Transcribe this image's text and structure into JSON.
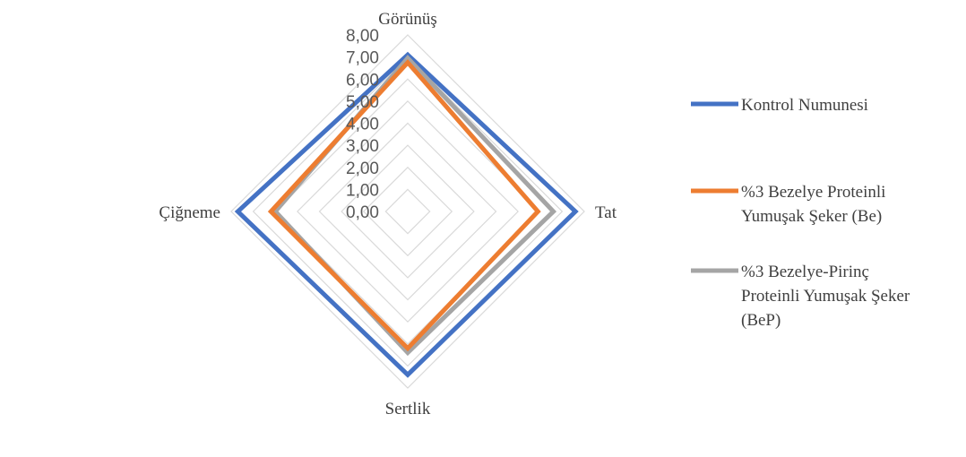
{
  "chart_data": {
    "type": "radar",
    "axes": [
      "Görünüş",
      "Tat",
      "Sertlik",
      "Çiğneme"
    ],
    "ticks": [
      "0,00",
      "1,00",
      "2,00",
      "3,00",
      "4,00",
      "5,00",
      "6,00",
      "7,00",
      "8,00"
    ],
    "rmin": 0,
    "rmax": 8,
    "grid": true,
    "legend_position": "right",
    "series": [
      {
        "name": "Kontrol Numunesi",
        "color": "#4472C4",
        "values": [
          7.1,
          7.6,
          7.4,
          7.7
        ]
      },
      {
        "name": "%3 Bezelye Proteinli Yumuşak Şeker (Be)",
        "color": "#ED7D31",
        "values": [
          6.75,
          5.9,
          6.2,
          6.2
        ]
      },
      {
        "name": "%3 Bezelye-Pirinç Proteinli Yumuşak Şeker (BeP)",
        "color": "#A5A5A5",
        "values": [
          6.95,
          6.6,
          6.4,
          6.0
        ]
      }
    ],
    "legend_lines": [
      [
        "Kontrol Numunesi"
      ],
      [
        "%3 Bezelye Proteinli",
        "Yumuşak Şeker (Be)"
      ],
      [
        "%3 Bezelye-Pirinç",
        "Proteinli Yumuşak Şeker",
        "(BeP)"
      ]
    ]
  }
}
